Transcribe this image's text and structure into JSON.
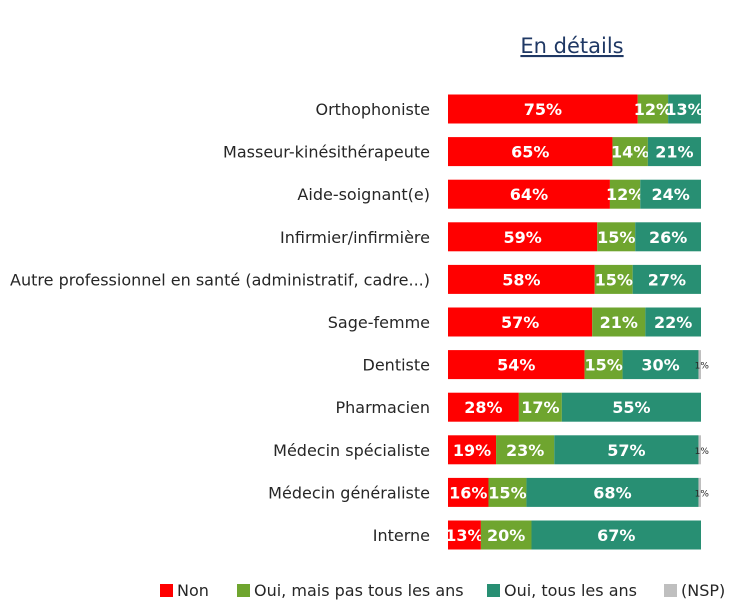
{
  "chart_data": {
    "type": "bar",
    "orientation": "horizontal",
    "stacked": true,
    "title": "En détails",
    "categories": [
      "Orthophoniste",
      "Masseur-kinésithérapeute",
      "Aide-soignant(e)",
      "Infirmier/infirmière",
      "Autre professionnel en santé (administratif, cadre...)",
      "Sage-femme",
      "Dentiste",
      "Pharmacien",
      "Médecin spécialiste",
      "Médecin généraliste",
      "Interne"
    ],
    "series": [
      {
        "name": "Non",
        "color": "#ff0000",
        "values": [
          75,
          65,
          64,
          59,
          58,
          57,
          54,
          28,
          19,
          16,
          13
        ]
      },
      {
        "name": "Oui, mais pas tous les ans",
        "color": "#6fa52f",
        "values": [
          12,
          14,
          12,
          15,
          15,
          21,
          15,
          17,
          23,
          15,
          20
        ]
      },
      {
        "name": "Oui, tous les ans",
        "color": "#288f73",
        "values": [
          13,
          21,
          24,
          26,
          27,
          22,
          30,
          55,
          57,
          68,
          67
        ]
      },
      {
        "name": "(NSP)",
        "color": "#bfbfbf",
        "values": [
          0,
          0,
          0,
          0,
          0,
          0,
          1,
          0,
          1,
          1,
          0
        ]
      }
    ],
    "value_suffix": "%",
    "legend_position": "bottom",
    "grid": false
  }
}
